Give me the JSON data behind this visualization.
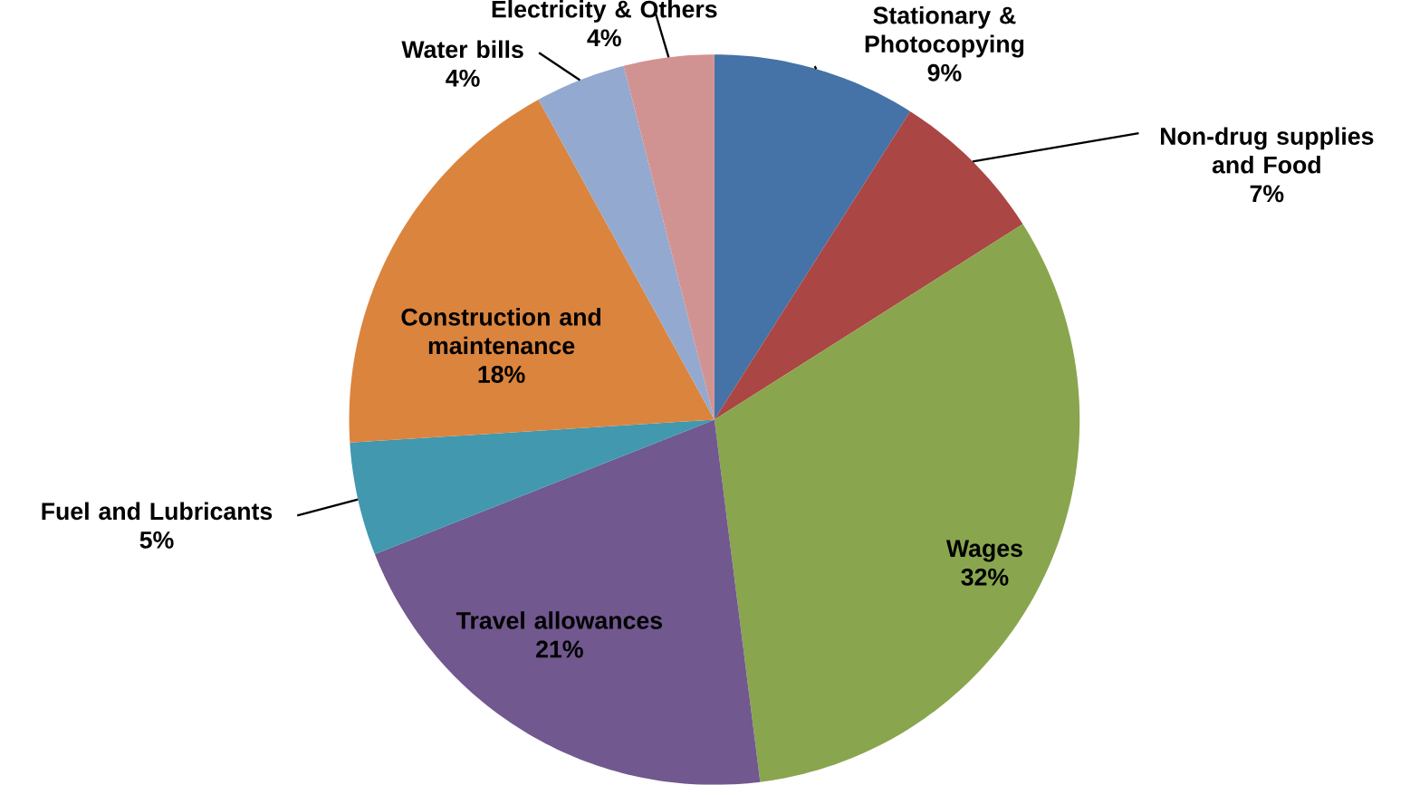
{
  "chart_data": {
    "type": "pie",
    "categories": [
      "Stationary & Photocopying",
      "Non-drug supplies and Food",
      "Wages",
      "Travel allowances",
      "Fuel and Lubricants",
      "Construction and maintenance",
      "Water bills",
      "Electricity & Others"
    ],
    "values": [
      9,
      7,
      32,
      21,
      5,
      18,
      4,
      4
    ],
    "value_labels": [
      "9%",
      "7%",
      "32%",
      "21%",
      "5%",
      "18%",
      "4%",
      "4%"
    ],
    "colors": [
      "#4572a7",
      "#aa4643",
      "#89a54e",
      "#71588f",
      "#4198af",
      "#db843d",
      "#93a9cf",
      "#d19392"
    ]
  }
}
